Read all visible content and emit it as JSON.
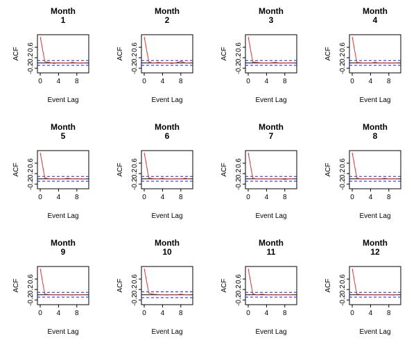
{
  "chart_data": {
    "type": "line",
    "layout": "4x3 grid of small-multiple ACF plots",
    "xlabel": "Event Lag",
    "ylabel": "ACF",
    "xlim": [
      0,
      10
    ],
    "ylim": [
      -0.3,
      1.0
    ],
    "xticks": [
      "0",
      "4",
      "8"
    ],
    "yticks": [
      "-0.2",
      "0.2",
      "0.6"
    ],
    "x": [
      0,
      1,
      2,
      3,
      4,
      5,
      6,
      7,
      8,
      9,
      10
    ],
    "grid": false,
    "line_color": "#e03030",
    "band_color": "#1f1fcf",
    "panels": [
      {
        "title_line1": "Month",
        "title_line2": "1",
        "acf": [
          1,
          0.05,
          0.02,
          -0.02,
          0.01,
          0.0,
          -0.01,
          0.02,
          0.0,
          -0.01,
          0.01
        ],
        "ci": 0.09
      },
      {
        "title_line1": "Month",
        "title_line2": "2",
        "acf": [
          1,
          0.04,
          -0.01,
          0.02,
          0.0,
          0.01,
          -0.02,
          0.01,
          0.06,
          0.0,
          -0.01
        ],
        "ci": 0.09
      },
      {
        "title_line1": "Month",
        "title_line2": "3",
        "acf": [
          1,
          0.03,
          0.02,
          0.0,
          -0.01,
          0.01,
          0.02,
          -0.01,
          0.0,
          0.01,
          0.0
        ],
        "ci": 0.09
      },
      {
        "title_line1": "Month",
        "title_line2": "4",
        "acf": [
          1,
          0.02,
          0.01,
          -0.01,
          0.0,
          0.02,
          0.0,
          0.01,
          -0.01,
          0.0,
          0.01
        ],
        "ci": 0.09
      },
      {
        "title_line1": "Month",
        "title_line2": "5",
        "acf": [
          1,
          0.04,
          0.0,
          0.01,
          -0.01,
          0.0,
          0.02,
          0.0,
          0.01,
          -0.01,
          0.0
        ],
        "ci": 0.09
      },
      {
        "title_line1": "Month",
        "title_line2": "6",
        "acf": [
          1,
          0.03,
          0.01,
          0.0,
          0.02,
          -0.01,
          0.0,
          0.01,
          0.0,
          0.02,
          -0.01
        ],
        "ci": 0.09
      },
      {
        "title_line1": "Month",
        "title_line2": "7",
        "acf": [
          1,
          0.02,
          0.0,
          0.01,
          0.0,
          -0.01,
          0.01,
          0.0,
          -0.02,
          0.0,
          0.01
        ],
        "ci": 0.09
      },
      {
        "title_line1": "Month",
        "title_line2": "8",
        "acf": [
          1,
          0.03,
          -0.01,
          0.0,
          0.01,
          0.0,
          -0.01,
          0.02,
          0.0,
          0.01,
          0.0
        ],
        "ci": 0.09
      },
      {
        "title_line1": "Month",
        "title_line2": "9",
        "acf": [
          1,
          0.02,
          0.01,
          0.0,
          -0.01,
          0.01,
          0.0,
          -0.01,
          0.0,
          0.01,
          0.0
        ],
        "ci": 0.09
      },
      {
        "title_line1": "Month",
        "title_line2": "10",
        "acf": [
          1,
          0.06,
          0.02,
          0.01,
          0.0,
          -0.01,
          0.01,
          0.0,
          0.02,
          0.0,
          -0.01
        ],
        "ci": 0.11
      },
      {
        "title_line1": "Month",
        "title_line2": "11",
        "acf": [
          1,
          0.03,
          0.0,
          0.02,
          0.0,
          0.01,
          -0.01,
          0.0,
          0.01,
          0.0,
          0.01
        ],
        "ci": 0.09
      },
      {
        "title_line1": "Month",
        "title_line2": "12",
        "acf": [
          1,
          0.02,
          0.01,
          0.0,
          0.01,
          -0.01,
          0.0,
          0.01,
          0.0,
          -0.01,
          0.0
        ],
        "ci": 0.09
      }
    ]
  }
}
